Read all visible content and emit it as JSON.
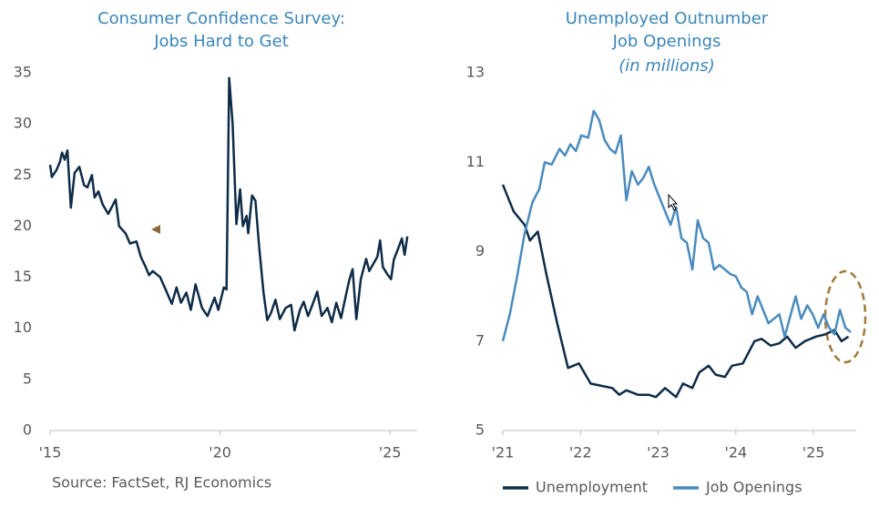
{
  "chart_data": [
    {
      "type": "line",
      "title": [
        "Consumer Confidence Survey:",
        "Jobs Hard to Get"
      ],
      "source": "Source: FactSet, RJ Economics",
      "color": "#0e2b47",
      "x": [
        2015.0,
        2015.05,
        2015.19,
        2015.29,
        2015.35,
        2015.43,
        2015.51,
        2015.61,
        2015.72,
        2015.86,
        2016.0,
        2016.1,
        2016.23,
        2016.31,
        2016.42,
        2016.55,
        2016.71,
        2016.93,
        2017.03,
        2017.22,
        2017.35,
        2017.54,
        2017.67,
        2017.81,
        2017.91,
        2018.02,
        2018.24,
        2018.37,
        2018.58,
        2018.72,
        2018.85,
        2019.01,
        2019.14,
        2019.28,
        2019.47,
        2019.63,
        2019.84,
        2019.95,
        2020.11,
        2020.19,
        2020.27,
        2020.37,
        2020.48,
        2020.59,
        2020.67,
        2020.78,
        2020.83,
        2020.94,
        2021.04,
        2021.15,
        2021.28,
        2021.39,
        2021.5,
        2021.63,
        2021.76,
        2021.93,
        2022.09,
        2022.19,
        2022.35,
        2022.46,
        2022.59,
        2022.73,
        2022.86,
        2022.99,
        2023.16,
        2023.29,
        2023.42,
        2023.56,
        2023.72,
        2023.8,
        2023.9,
        2024.01,
        2024.14,
        2024.3,
        2024.39,
        2024.49,
        2024.63,
        2024.71,
        2024.79,
        2024.92,
        2025.03,
        2025.11,
        2025.24,
        2025.35,
        2025.43,
        2025.51
      ],
      "values": [
        26,
        24.8,
        25.5,
        26.3,
        27.2,
        26.5,
        27.4,
        21.8,
        25.2,
        25.8,
        24,
        23.8,
        25,
        22.8,
        23.4,
        22.1,
        21.2,
        22.6,
        20,
        19.3,
        18.3,
        18.5,
        17,
        16,
        15.2,
        15.6,
        15,
        14,
        12.4,
        14,
        12.5,
        13.5,
        11.8,
        14.3,
        12,
        11.2,
        13,
        11.8,
        14,
        13.8,
        34.5,
        30,
        20.2,
        23.6,
        20,
        21,
        19.3,
        23,
        22.5,
        18,
        13.5,
        10.8,
        11.5,
        12.8,
        10.9,
        12,
        12.3,
        9.8,
        11.8,
        12.6,
        11.2,
        12.4,
        13.6,
        11.2,
        12,
        10.6,
        12.5,
        11,
        13.5,
        14.7,
        15.8,
        10.9,
        14.8,
        16.8,
        15.6,
        16.2,
        17,
        18.6,
        16,
        15.3,
        14.8,
        16.7,
        17.8,
        18.8,
        17.2,
        19
      ],
      "xlim": [
        2015,
        2025.8
      ],
      "xticks": [
        {
          "value": 2015,
          "label": "'15"
        },
        {
          "value": 2020,
          "label": "'20"
        },
        {
          "value": 2025,
          "label": "'25"
        }
      ],
      "ylim": [
        0,
        35
      ],
      "yticks": [
        0,
        5,
        10,
        15,
        20,
        25,
        30,
        35
      ],
      "grid": false
    },
    {
      "type": "line",
      "title": [
        "Unemployed Outnumber",
        "Job Openings"
      ],
      "subtitle": "(in millions)",
      "legend": "bottom",
      "series": [
        {
          "name": "Unemployment",
          "color": "#0e2b47",
          "x": [
            2021.0,
            2021.14,
            2021.28,
            2021.35,
            2021.45,
            2021.56,
            2021.7,
            2021.84,
            2021.98,
            2022.13,
            2022.27,
            2022.41,
            2022.5,
            2022.59,
            2022.74,
            2022.88,
            2022.97,
            2023.09,
            2023.23,
            2023.32,
            2023.44,
            2023.53,
            2023.65,
            2023.74,
            2023.86,
            2023.95,
            2024.09,
            2024.24,
            2024.33,
            2024.45,
            2024.56,
            2024.66,
            2024.77,
            2024.89,
            2025.03,
            2025.15,
            2025.27,
            2025.36,
            2025.45
          ],
          "values": [
            10.5,
            9.9,
            9.6,
            9.25,
            9.45,
            8.5,
            7.4,
            6.4,
            6.5,
            6.05,
            6.0,
            5.95,
            5.8,
            5.9,
            5.8,
            5.8,
            5.75,
            5.95,
            5.75,
            6.05,
            5.95,
            6.3,
            6.45,
            6.25,
            6.2,
            6.45,
            6.5,
            7.0,
            7.05,
            6.9,
            6.95,
            7.1,
            6.85,
            7.0,
            7.1,
            7.15,
            7.25,
            7.0,
            7.1
          ]
        },
        {
          "name": "Job Openings",
          "color": "#4a8bbd",
          "x": [
            2021.0,
            2021.09,
            2021.19,
            2021.28,
            2021.38,
            2021.47,
            2021.54,
            2021.63,
            2021.73,
            2021.8,
            2021.87,
            2021.94,
            2022.01,
            2022.1,
            2022.17,
            2022.24,
            2022.31,
            2022.38,
            2022.45,
            2022.52,
            2022.59,
            2022.66,
            2022.74,
            2022.81,
            2022.88,
            2022.95,
            2023.02,
            2023.09,
            2023.16,
            2023.23,
            2023.3,
            2023.37,
            2023.44,
            2023.51,
            2023.58,
            2023.65,
            2023.72,
            2023.79,
            2023.86,
            2023.93,
            2024.0,
            2024.07,
            2024.14,
            2024.21,
            2024.28,
            2024.35,
            2024.42,
            2024.49,
            2024.56,
            2024.63,
            2024.7,
            2024.77,
            2024.84,
            2024.92,
            2024.99,
            2025.06,
            2025.13,
            2025.2,
            2025.27,
            2025.34,
            2025.41,
            2025.48
          ],
          "values": [
            7.0,
            7.6,
            8.5,
            9.4,
            10.1,
            10.4,
            11.0,
            10.95,
            11.3,
            11.15,
            11.4,
            11.25,
            11.6,
            11.55,
            12.15,
            11.95,
            11.5,
            11.3,
            11.2,
            11.6,
            10.15,
            10.8,
            10.5,
            10.65,
            10.9,
            10.5,
            10.2,
            9.9,
            9.6,
            10.0,
            9.3,
            9.2,
            8.6,
            9.7,
            9.3,
            9.2,
            8.6,
            8.7,
            8.6,
            8.5,
            8.45,
            8.2,
            8.1,
            7.6,
            8.0,
            7.7,
            7.4,
            7.5,
            7.6,
            7.1,
            7.55,
            8.0,
            7.5,
            7.8,
            7.6,
            7.3,
            7.6,
            7.3,
            7.15,
            7.7,
            7.3,
            7.2
          ]
        }
      ],
      "xlim": [
        2021,
        2025.55
      ],
      "xticks": [
        {
          "value": 2021,
          "label": "'21"
        },
        {
          "value": 2022,
          "label": "'22"
        },
        {
          "value": 2023,
          "label": "'23"
        },
        {
          "value": 2024,
          "label": "'24"
        },
        {
          "value": 2025,
          "label": "'25"
        }
      ],
      "ylim": [
        5,
        13
      ],
      "yticks": [
        5,
        7,
        9,
        11,
        13
      ],
      "grid": false
    }
  ]
}
